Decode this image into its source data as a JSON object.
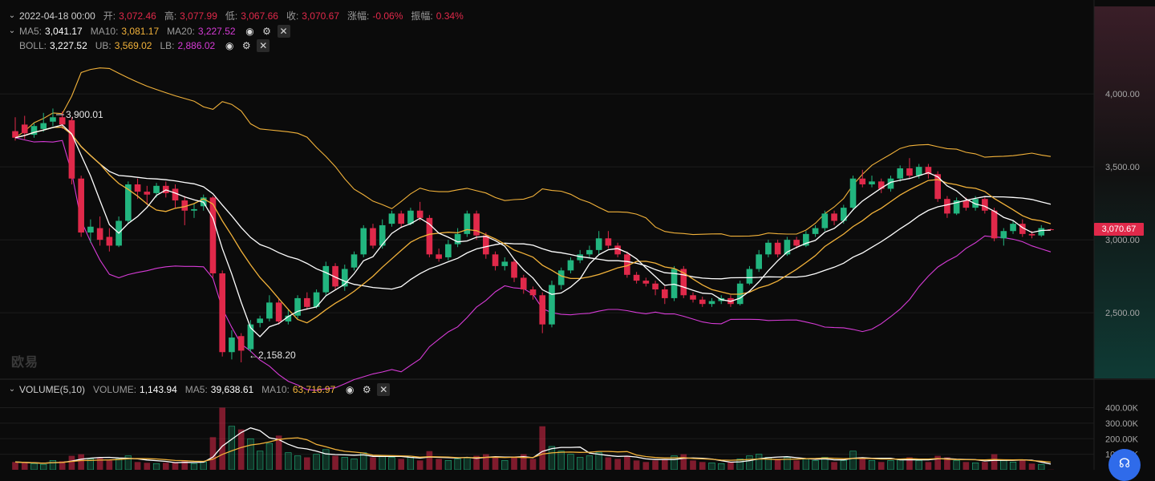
{
  "header": {
    "date": "2022-04-18 00:00",
    "open_label": "开:",
    "open": "3,072.46",
    "high_label": "高:",
    "high": "3,077.99",
    "low_label": "低:",
    "low": "3,067.66",
    "close_label": "收:",
    "close": "3,070.67",
    "change_label": "涨幅:",
    "change": "-0.06%",
    "amplitude_label": "振幅:",
    "amplitude": "0.34%"
  },
  "ma": {
    "ma5_label": "MA5:",
    "ma5": "3,041.17",
    "ma10_label": "MA10:",
    "ma10": "3,081.17",
    "ma20_label": "MA20:",
    "ma20": "3,227.52"
  },
  "boll": {
    "boll_label": "BOLL:",
    "boll": "3,227.52",
    "ub_label": "UB:",
    "ub": "3,569.02",
    "lb_label": "LB:",
    "lb": "2,886.02"
  },
  "volume": {
    "title": "VOLUME(5,10)",
    "vol_label": "VOLUME:",
    "vol": "1,143.94",
    "ma5_label": "MA5:",
    "ma5": "39,638.61",
    "ma10_label": "MA10:",
    "ma10": "63,716.97"
  },
  "annotations": {
    "high_mark": "3,900.01",
    "low_mark": "2,158.20"
  },
  "current_price": "3,070.67",
  "logo_text": "欧易",
  "colors": {
    "up": "#22b57f",
    "down": "#e0294a",
    "ma5": "#ffffff",
    "ma10": "#f2b23a",
    "ma20": "#ffffff",
    "ub": "#f2b23a",
    "lb": "#d63bd6",
    "grid": "#1d1d1d"
  },
  "icons": [
    "chevron-down-icon",
    "eye-icon",
    "gear-icon",
    "close-icon",
    "headset-icon"
  ],
  "chart_data": {
    "type": "candlestick",
    "price_axis": {
      "ticks": [
        "4,000.00",
        "3,500.00",
        "3,000.00",
        "2,500.00"
      ],
      "tick_values": [
        4000,
        3500,
        3000,
        2500
      ],
      "range": [
        2050,
        4600
      ]
    },
    "volume_axis": {
      "ticks": [
        "400.00K",
        "300.00K",
        "200.00K",
        "100.00K"
      ],
      "tick_values": [
        400000,
        300000,
        200000,
        100000
      ],
      "range": [
        0,
        480000
      ]
    },
    "candles": [
      [
        3745,
        3700,
        3840,
        3680,
        50000
      ],
      [
        3790,
        3730,
        3850,
        3690,
        45000
      ],
      [
        3720,
        3780,
        3800,
        3700,
        40000
      ],
      [
        3760,
        3800,
        3870,
        3740,
        35000
      ],
      [
        3810,
        3840,
        3900,
        3780,
        60000
      ],
      [
        3840,
        3790,
        3880,
        3760,
        55000
      ],
      [
        3820,
        3420,
        3840,
        3380,
        90000
      ],
      [
        3420,
        3050,
        3440,
        3020,
        100000
      ],
      [
        3050,
        3090,
        3140,
        2980,
        70000
      ],
      [
        3080,
        3000,
        3160,
        2960,
        80000
      ],
      [
        3020,
        2960,
        3080,
        2920,
        60000
      ],
      [
        2960,
        3130,
        3160,
        2950,
        70000
      ],
      [
        3130,
        3380,
        3400,
        3110,
        90000
      ],
      [
        3380,
        3330,
        3420,
        3280,
        50000
      ],
      [
        3330,
        3310,
        3370,
        3240,
        45000
      ],
      [
        3320,
        3370,
        3390,
        3290,
        40000
      ],
      [
        3370,
        3320,
        3400,
        3290,
        45000
      ],
      [
        3350,
        3270,
        3380,
        3220,
        50000
      ],
      [
        3270,
        3200,
        3300,
        3100,
        60000
      ],
      [
        3200,
        3210,
        3250,
        3150,
        40000
      ],
      [
        3230,
        3290,
        3310,
        3200,
        50000
      ],
      [
        3290,
        2770,
        3300,
        2740,
        210000
      ],
      [
        2770,
        2230,
        2790,
        2200,
        400000
      ],
      [
        2230,
        2330,
        2380,
        2180,
        280000
      ],
      [
        2340,
        2240,
        2360,
        2160,
        260000
      ],
      [
        2250,
        2420,
        2450,
        2230,
        200000
      ],
      [
        2430,
        2460,
        2480,
        2400,
        120000
      ],
      [
        2460,
        2570,
        2620,
        2440,
        170000
      ],
      [
        2570,
        2440,
        2600,
        2420,
        220000
      ],
      [
        2440,
        2480,
        2520,
        2420,
        110000
      ],
      [
        2480,
        2600,
        2620,
        2460,
        90000
      ],
      [
        2600,
        2540,
        2640,
        2520,
        80000
      ],
      [
        2540,
        2640,
        2660,
        2530,
        100000
      ],
      [
        2640,
        2820,
        2850,
        2620,
        130000
      ],
      [
        2820,
        2680,
        2840,
        2660,
        90000
      ],
      [
        2680,
        2800,
        2830,
        2650,
        80000
      ],
      [
        2810,
        2900,
        2920,
        2790,
        70000
      ],
      [
        2900,
        3080,
        3100,
        2880,
        110000
      ],
      [
        3080,
        2960,
        3110,
        2940,
        80000
      ],
      [
        2960,
        3100,
        3140,
        2940,
        90000
      ],
      [
        3110,
        3180,
        3200,
        3090,
        80000
      ],
      [
        3180,
        3110,
        3200,
        3080,
        70000
      ],
      [
        3110,
        3200,
        3220,
        3100,
        80000
      ],
      [
        3200,
        3150,
        3260,
        3130,
        60000
      ],
      [
        3150,
        2900,
        3170,
        2880,
        120000
      ],
      [
        2900,
        2870,
        2940,
        2850,
        70000
      ],
      [
        2880,
        2970,
        3000,
        2860,
        60000
      ],
      [
        2970,
        3040,
        3080,
        2950,
        70000
      ],
      [
        3040,
        3180,
        3200,
        3020,
        80000
      ],
      [
        3180,
        3030,
        3200,
        3000,
        90000
      ],
      [
        3030,
        2900,
        3050,
        2870,
        100000
      ],
      [
        2900,
        2820,
        2920,
        2790,
        80000
      ],
      [
        2820,
        2850,
        2880,
        2790,
        60000
      ],
      [
        2850,
        2740,
        2870,
        2710,
        80000
      ],
      [
        2740,
        2660,
        2760,
        2630,
        100000
      ],
      [
        2660,
        2620,
        2680,
        2590,
        70000
      ],
      [
        2620,
        2420,
        2640,
        2360,
        280000
      ],
      [
        2420,
        2690,
        2720,
        2400,
        150000
      ],
      [
        2690,
        2790,
        2810,
        2660,
        120000
      ],
      [
        2790,
        2860,
        2880,
        2770,
        100000
      ],
      [
        2860,
        2900,
        2930,
        2840,
        80000
      ],
      [
        2900,
        2930,
        2960,
        2880,
        90000
      ],
      [
        2930,
        3010,
        3060,
        2900,
        110000
      ],
      [
        3010,
        2960,
        3060,
        2940,
        80000
      ],
      [
        2960,
        2900,
        2980,
        2880,
        70000
      ],
      [
        2900,
        2760,
        2920,
        2740,
        90000
      ],
      [
        2760,
        2720,
        2780,
        2700,
        60000
      ],
      [
        2720,
        2700,
        2740,
        2680,
        50000
      ],
      [
        2700,
        2660,
        2720,
        2620,
        60000
      ],
      [
        2660,
        2600,
        2680,
        2560,
        70000
      ],
      [
        2600,
        2800,
        2820,
        2580,
        90000
      ],
      [
        2800,
        2620,
        2820,
        2600,
        100000
      ],
      [
        2620,
        2590,
        2640,
        2570,
        60000
      ],
      [
        2590,
        2560,
        2610,
        2540,
        50000
      ],
      [
        2560,
        2580,
        2600,
        2540,
        45000
      ],
      [
        2580,
        2600,
        2620,
        2560,
        40000
      ],
      [
        2600,
        2560,
        2620,
        2540,
        50000
      ],
      [
        2560,
        2700,
        2720,
        2550,
        70000
      ],
      [
        2700,
        2800,
        2820,
        2690,
        90000
      ],
      [
        2800,
        2900,
        2930,
        2780,
        100000
      ],
      [
        2900,
        2980,
        3000,
        2880,
        80000
      ],
      [
        2980,
        2900,
        3000,
        2880,
        70000
      ],
      [
        2900,
        3000,
        3020,
        2890,
        80000
      ],
      [
        3000,
        2960,
        3020,
        2940,
        60000
      ],
      [
        2960,
        3040,
        3060,
        2950,
        70000
      ],
      [
        3040,
        3080,
        3100,
        3020,
        60000
      ],
      [
        3080,
        3180,
        3200,
        3060,
        80000
      ],
      [
        3180,
        3130,
        3200,
        3100,
        50000
      ],
      [
        3130,
        3220,
        3240,
        3110,
        60000
      ],
      [
        3220,
        3420,
        3440,
        3200,
        120000
      ],
      [
        3420,
        3380,
        3480,
        3360,
        80000
      ],
      [
        3380,
        3400,
        3440,
        3360,
        60000
      ],
      [
        3400,
        3350,
        3420,
        3320,
        50000
      ],
      [
        3350,
        3420,
        3440,
        3330,
        60000
      ],
      [
        3420,
        3490,
        3510,
        3400,
        70000
      ],
      [
        3490,
        3440,
        3560,
        3420,
        80000
      ],
      [
        3440,
        3500,
        3520,
        3420,
        60000
      ],
      [
        3500,
        3450,
        3520,
        3420,
        50000
      ],
      [
        3450,
        3280,
        3470,
        3260,
        90000
      ],
      [
        3280,
        3180,
        3300,
        3150,
        80000
      ],
      [
        3180,
        3270,
        3290,
        3170,
        60000
      ],
      [
        3270,
        3220,
        3290,
        3200,
        50000
      ],
      [
        3220,
        3280,
        3300,
        3200,
        45000
      ],
      [
        3280,
        3200,
        3300,
        3180,
        50000
      ],
      [
        3200,
        3010,
        3220,
        2990,
        100000
      ],
      [
        3010,
        3060,
        3080,
        2960,
        60000
      ],
      [
        3060,
        3110,
        3130,
        3040,
        50000
      ],
      [
        3110,
        3040,
        3140,
        3020,
        60000
      ],
      [
        3040,
        3030,
        3060,
        3010,
        40000
      ],
      [
        3030,
        3080,
        3100,
        3020,
        35000
      ],
      [
        3072,
        3070,
        3078,
        3067,
        1143
      ]
    ]
  }
}
